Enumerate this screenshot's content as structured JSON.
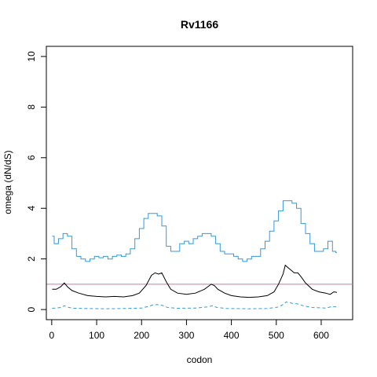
{
  "chart_data": {
    "type": "line",
    "title": "Rv1166",
    "xlabel": "codon",
    "ylabel": "omega (dN/dS)",
    "xlim": [
      -12,
      670
    ],
    "ylim": [
      -0.4,
      10.4
    ],
    "x_ticks": [
      0,
      100,
      200,
      300,
      400,
      500,
      600
    ],
    "y_ticks": [
      0,
      2,
      4,
      6,
      8,
      10
    ],
    "reference_line": {
      "y": 1,
      "color": "#cc79a7"
    },
    "colors": {
      "mean": "#000000",
      "upper": "#3399dd",
      "lower": "#3399dd"
    },
    "series": [
      {
        "key": "upper",
        "style": "solid-step",
        "points": [
          [
            1,
            2.9
          ],
          [
            10,
            2.6
          ],
          [
            20,
            2.8
          ],
          [
            30,
            3.0
          ],
          [
            40,
            2.9
          ],
          [
            50,
            2.4
          ],
          [
            60,
            2.1
          ],
          [
            70,
            2.0
          ],
          [
            80,
            1.9
          ],
          [
            90,
            2.0
          ],
          [
            100,
            2.1
          ],
          [
            110,
            2.05
          ],
          [
            120,
            2.1
          ],
          [
            130,
            2.0
          ],
          [
            140,
            2.1
          ],
          [
            150,
            2.15
          ],
          [
            160,
            2.1
          ],
          [
            170,
            2.2
          ],
          [
            180,
            2.4
          ],
          [
            190,
            2.8
          ],
          [
            200,
            3.2
          ],
          [
            210,
            3.6
          ],
          [
            220,
            3.8
          ],
          [
            230,
            3.8
          ],
          [
            240,
            3.7
          ],
          [
            250,
            3.3
          ],
          [
            260,
            2.5
          ],
          [
            270,
            2.3
          ],
          [
            280,
            2.3
          ],
          [
            290,
            2.6
          ],
          [
            300,
            2.7
          ],
          [
            310,
            2.6
          ],
          [
            320,
            2.8
          ],
          [
            330,
            2.9
          ],
          [
            340,
            3.0
          ],
          [
            350,
            3.0
          ],
          [
            360,
            2.9
          ],
          [
            370,
            2.6
          ],
          [
            380,
            2.3
          ],
          [
            390,
            2.2
          ],
          [
            400,
            2.2
          ],
          [
            410,
            2.1
          ],
          [
            420,
            2.0
          ],
          [
            430,
            1.9
          ],
          [
            440,
            2.0
          ],
          [
            450,
            2.1
          ],
          [
            460,
            2.1
          ],
          [
            470,
            2.4
          ],
          [
            480,
            2.7
          ],
          [
            490,
            3.1
          ],
          [
            500,
            3.5
          ],
          [
            510,
            3.9
          ],
          [
            520,
            4.3
          ],
          [
            530,
            4.3
          ],
          [
            540,
            4.2
          ],
          [
            550,
            4.0
          ],
          [
            560,
            3.4
          ],
          [
            570,
            3.0
          ],
          [
            580,
            2.6
          ],
          [
            590,
            2.3
          ],
          [
            600,
            2.3
          ],
          [
            610,
            2.4
          ],
          [
            620,
            2.7
          ],
          [
            630,
            2.3
          ],
          [
            635,
            2.25
          ]
        ]
      },
      {
        "key": "mean",
        "style": "solid",
        "points": [
          [
            1,
            0.8
          ],
          [
            10,
            0.8
          ],
          [
            20,
            0.9
          ],
          [
            28,
            1.05
          ],
          [
            35,
            0.9
          ],
          [
            45,
            0.75
          ],
          [
            60,
            0.65
          ],
          [
            80,
            0.55
          ],
          [
            100,
            0.52
          ],
          [
            120,
            0.5
          ],
          [
            140,
            0.52
          ],
          [
            160,
            0.5
          ],
          [
            180,
            0.55
          ],
          [
            195,
            0.65
          ],
          [
            210,
            0.95
          ],
          [
            222,
            1.35
          ],
          [
            230,
            1.45
          ],
          [
            238,
            1.4
          ],
          [
            245,
            1.45
          ],
          [
            255,
            1.1
          ],
          [
            265,
            0.8
          ],
          [
            280,
            0.65
          ],
          [
            300,
            0.6
          ],
          [
            320,
            0.65
          ],
          [
            340,
            0.8
          ],
          [
            355,
            1.0
          ],
          [
            362,
            0.95
          ],
          [
            370,
            0.8
          ],
          [
            385,
            0.65
          ],
          [
            400,
            0.55
          ],
          [
            420,
            0.5
          ],
          [
            440,
            0.48
          ],
          [
            460,
            0.5
          ],
          [
            480,
            0.55
          ],
          [
            495,
            0.7
          ],
          [
            505,
            1.0
          ],
          [
            515,
            1.4
          ],
          [
            520,
            1.75
          ],
          [
            530,
            1.6
          ],
          [
            540,
            1.45
          ],
          [
            548,
            1.45
          ],
          [
            555,
            1.3
          ],
          [
            565,
            1.05
          ],
          [
            580,
            0.8
          ],
          [
            595,
            0.7
          ],
          [
            610,
            0.65
          ],
          [
            620,
            0.6
          ],
          [
            628,
            0.7
          ],
          [
            635,
            0.68
          ]
        ]
      },
      {
        "key": "lower",
        "style": "dashed",
        "points": [
          [
            1,
            0.05
          ],
          [
            10,
            0.06
          ],
          [
            20,
            0.08
          ],
          [
            28,
            0.15
          ],
          [
            38,
            0.08
          ],
          [
            50,
            0.05
          ],
          [
            80,
            0.04
          ],
          [
            120,
            0.03
          ],
          [
            160,
            0.04
          ],
          [
            200,
            0.06
          ],
          [
            215,
            0.12
          ],
          [
            225,
            0.18
          ],
          [
            235,
            0.2
          ],
          [
            245,
            0.17
          ],
          [
            258,
            0.08
          ],
          [
            280,
            0.05
          ],
          [
            320,
            0.06
          ],
          [
            345,
            0.1
          ],
          [
            358,
            0.15
          ],
          [
            368,
            0.08
          ],
          [
            390,
            0.04
          ],
          [
            440,
            0.03
          ],
          [
            480,
            0.04
          ],
          [
            505,
            0.1
          ],
          [
            515,
            0.2
          ],
          [
            522,
            0.3
          ],
          [
            535,
            0.25
          ],
          [
            548,
            0.22
          ],
          [
            560,
            0.15
          ],
          [
            580,
            0.08
          ],
          [
            610,
            0.06
          ],
          [
            625,
            0.12
          ],
          [
            635,
            0.1
          ]
        ]
      }
    ]
  }
}
